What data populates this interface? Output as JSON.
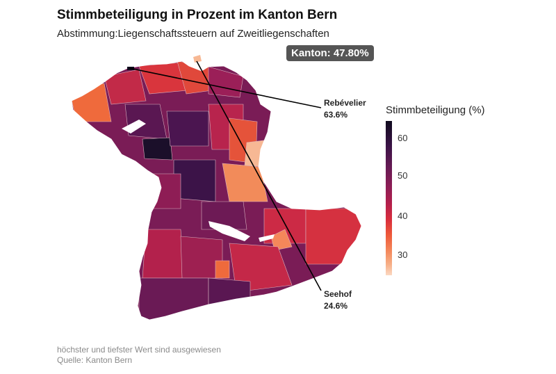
{
  "title": "Stimmbeteiligung in Prozent im Kanton Bern",
  "subtitle": "Abstimmung:Liegenschaftssteuern auf Zweitliegenschaften",
  "kanton_badge": "Kanton: 47.80%",
  "annotations": {
    "max": {
      "name": "Rebévelier",
      "value": "63.6%"
    },
    "min": {
      "name": "Seehof",
      "value": "24.6%"
    }
  },
  "legend": {
    "title": "Stimmbeteiligung (%)",
    "ticks": [
      "60",
      "50",
      "40",
      "30"
    ],
    "range": [
      24.6,
      63.6
    ]
  },
  "colors": {
    "scale": [
      "#0f0a1e",
      "#3a1346",
      "#661a54",
      "#8e1d55",
      "#b51f4b",
      "#d92e3c",
      "#ee5a3a",
      "#f4875a",
      "#f7b088",
      "#fbd8c2"
    ],
    "badge_bg": "#555555"
  },
  "footer": {
    "note": "höchster und tiefster Wert sind ausgewiesen",
    "source": "Quelle: Kanton Bern"
  }
}
